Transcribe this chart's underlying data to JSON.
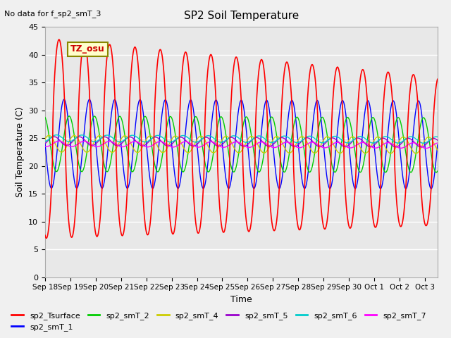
{
  "title": "SP2 Soil Temperature",
  "subtitle": "No data for f_sp2_smT_3",
  "xlabel": "Time",
  "ylabel": "Soil Temperature (C)",
  "ylim": [
    0,
    45
  ],
  "xlim_start": 0,
  "xlim_end": 15.5,
  "tz_label": "TZ_osu",
  "x_tick_labels": [
    "Sep 18",
    "Sep 19",
    "Sep 20",
    "Sep 21",
    "Sep 22",
    "Sep 23",
    "Sep 24",
    "Sep 25",
    "Sep 26",
    "Sep 27",
    "Sep 28",
    "Sep 29",
    "Sep 30",
    "Oct 1",
    "Oct 2",
    "Oct 3"
  ],
  "background_color": "#e8e8e8",
  "grid_color": "#ffffff",
  "series": {
    "sp2_Tsurface": {
      "color": "#ff0000",
      "amp": 18,
      "mean": 25,
      "phase": 0.3,
      "decay": 0.03
    },
    "sp2_smT_1": {
      "color": "#0000ff",
      "amp": 8,
      "mean": 24,
      "phase": 0.5,
      "decay": 0.04
    },
    "sp2_smT_2": {
      "color": "#00cc00",
      "amp": 5,
      "mean": 24,
      "phase": 0.7,
      "decay": 0.05
    },
    "sp2_smT_4": {
      "color": "#cccc00",
      "amp": 1.5,
      "mean": 24,
      "phase": 0.9,
      "decay": 0.06
    },
    "sp2_smT_5": {
      "color": "#9900cc",
      "amp": 0.8,
      "mean": 24.5,
      "phase": 1.1,
      "decay": 0.07
    },
    "sp2_smT_6": {
      "color": "#00cccc",
      "amp": 0.6,
      "mean": 25,
      "phase": 1.2,
      "decay": 0.07
    },
    "sp2_smT_7": {
      "color": "#ff00ff",
      "amp": 0.5,
      "mean": 24,
      "phase": 1.3,
      "decay": 0.07
    }
  },
  "legend_order": [
    "sp2_Tsurface",
    "sp2_smT_1",
    "sp2_smT_2",
    "sp2_smT_4",
    "sp2_smT_5",
    "sp2_smT_6",
    "sp2_smT_7"
  ]
}
